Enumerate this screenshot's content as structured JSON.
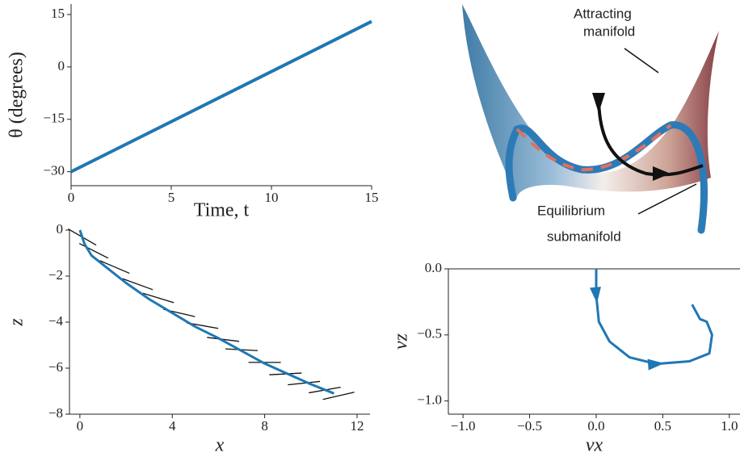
{
  "chart_data": [
    {
      "type": "line",
      "x_label": "Time, t",
      "y_label": "θ (degrees)",
      "x": [
        0,
        15
      ],
      "series": [
        {
          "color": "#1f77b4",
          "values": [
            -30,
            13
          ]
        }
      ],
      "xlim": [
        0,
        15
      ],
      "ylim": [
        -34,
        18
      ],
      "xticks": [
        0,
        5,
        10,
        15
      ],
      "yticks": [
        {
          "value": -30,
          "label": "−30"
        },
        {
          "value": -15,
          "label": "−15"
        },
        0,
        15
      ]
    },
    {
      "type": "line",
      "x_label": "x",
      "y_label": "z",
      "x": [
        0,
        0.2,
        0.5,
        1,
        2,
        3,
        4,
        5,
        6,
        7,
        8,
        9,
        10,
        11
      ],
      "series": [
        {
          "color": "#1f77b4",
          "values": [
            0,
            -0.6,
            -1.1,
            -1.5,
            -2.3,
            -3.0,
            -3.6,
            -4.2,
            -4.7,
            -5.25,
            -5.8,
            -6.25,
            -6.7,
            -7.1
          ]
        }
      ],
      "orientation": {
        "x": [
          0.1,
          0.6,
          1.5,
          2.5,
          3.4,
          4.3,
          5.3,
          6.2,
          7.0,
          8.0,
          8.9,
          9.7,
          10.6,
          11.2
        ],
        "y": [
          -0.3,
          -0.9,
          -1.6,
          -2.35,
          -2.95,
          -3.6,
          -4.15,
          -4.75,
          -5.2,
          -5.75,
          -6.25,
          -6.65,
          -6.95,
          -7.2
        ],
        "angle": [
          -30,
          -27,
          -23,
          -20,
          -17,
          -13,
          -10,
          -7,
          -3,
          0,
          3,
          6,
          10,
          13
        ]
      },
      "xlim": [
        -0.45,
        12.56
      ],
      "ylim": [
        -8,
        0
      ],
      "xticks": [
        0,
        4,
        8,
        12
      ],
      "yticks": [
        {
          "value": -8,
          "label": "−8"
        },
        {
          "value": -6,
          "label": "−6"
        },
        {
          "value": -4,
          "label": "−4"
        },
        {
          "value": -2,
          "label": "−2"
        },
        0
      ]
    },
    {
      "type": "line",
      "x_label": "vx",
      "y_label": "vz",
      "x": [
        0,
        0,
        0.02,
        0.1,
        0.25,
        0.45,
        0.7,
        0.85,
        0.87,
        0.83,
        0.78,
        0.72
      ],
      "series": [
        {
          "color": "#1f77b4",
          "values": [
            0,
            -0.2,
            -0.4,
            -0.55,
            -0.67,
            -0.72,
            -0.7,
            -0.64,
            -0.5,
            -0.4,
            -0.38,
            -0.27
          ]
        }
      ],
      "xlim": [
        -1.11,
        1.08
      ],
      "ylim": [
        -1.1,
        0.0
      ],
      "xticks": [
        {
          "value": -1,
          "label": "−1.0"
        },
        {
          "value": -0.5,
          "label": "−0.5"
        },
        {
          "value": 0,
          "label": "0.0"
        },
        {
          "value": 0.5,
          "label": "0.5"
        },
        {
          "value": 1,
          "label": "1.0"
        }
      ],
      "yticks": [
        {
          "value": -1,
          "label": "−1.0"
        },
        {
          "value": -0.5,
          "label": "−0.5"
        },
        {
          "value": 0,
          "label": "0.0"
        }
      ]
    }
  ],
  "illustration": {
    "top_label": [
      "Attracting",
      "manifold"
    ],
    "bottom_label": [
      "Equilibrium",
      "submanifold"
    ]
  }
}
